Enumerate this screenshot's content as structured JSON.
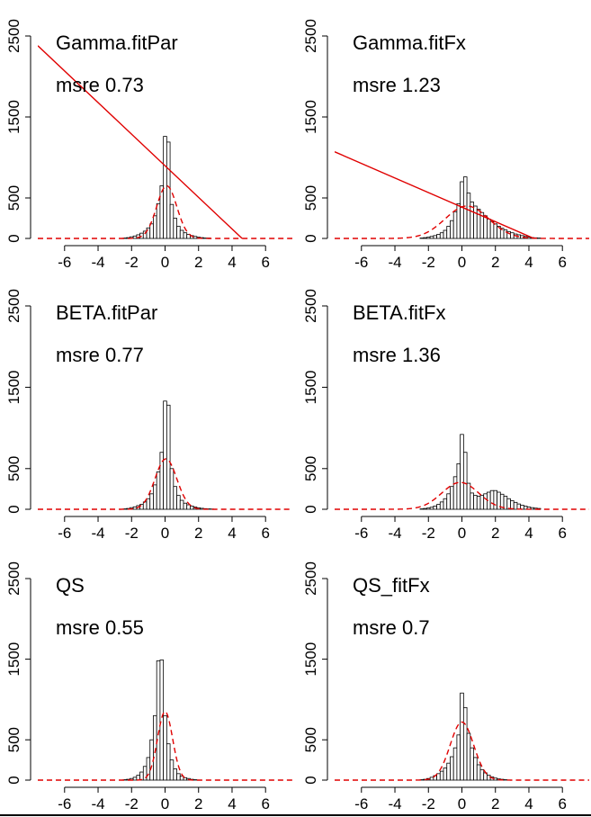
{
  "colors": {
    "line": "#e00000",
    "bars": "#000000",
    "background": "#ffffff"
  },
  "chart_data": [
    {
      "type": "bar",
      "title": "Gamma.fitPar",
      "subtitle": "msre 0.73",
      "xlabel": "",
      "ylabel": "",
      "xlim": [
        -7.6,
        7.6
      ],
      "ylim": [
        0,
        2500
      ],
      "x_ticks": [
        "-6",
        "-4",
        "-2",
        "0",
        "2",
        "4",
        "6"
      ],
      "y_ticks": [
        "0",
        "500",
        "1500",
        "2500"
      ],
      "bins": {
        "start": -2.5,
        "width": 0.2,
        "counts": [
          5,
          10,
          20,
          30,
          45,
          65,
          90,
          130,
          180,
          280,
          430,
          650,
          1260,
          1190,
          420,
          250,
          150,
          100,
          70,
          50,
          35,
          25,
          15,
          10,
          5,
          5
        ]
      },
      "series": [
        {
          "kind": "dashed-density",
          "mean": 0.1,
          "sd": 0.6,
          "peak": 650
        },
        {
          "kind": "solid-line",
          "x": [
            -7.6,
            4.6
          ],
          "y": [
            2380,
            0
          ]
        }
      ]
    },
    {
      "type": "bar",
      "title": "Gamma.fitFx",
      "subtitle": "msre 1.23",
      "xlabel": "",
      "ylabel": "",
      "xlim": [
        -7.6,
        7.6
      ],
      "ylim": [
        0,
        2500
      ],
      "x_ticks": [
        "-6",
        "-4",
        "-2",
        "0",
        "2",
        "4",
        "6"
      ],
      "y_ticks": [
        "0",
        "500",
        "1500",
        "2500"
      ],
      "bins": {
        "start": -2.5,
        "width": 0.2,
        "counts": [
          5,
          10,
          15,
          25,
          35,
          50,
          70,
          100,
          150,
          220,
          330,
          430,
          700,
          760,
          560,
          450,
          400,
          360,
          320,
          280,
          240,
          210,
          180,
          150,
          125,
          105,
          85,
          70,
          55,
          45,
          35,
          25,
          15,
          10,
          8,
          5
        ]
      },
      "series": [
        {
          "kind": "dashed-density",
          "mean": 0.3,
          "sd": 1.3,
          "peak": 400
        },
        {
          "kind": "solid-line",
          "x": [
            -7.6,
            4.3
          ],
          "y": [
            1070,
            0
          ]
        }
      ]
    },
    {
      "type": "bar",
      "title": "BETA.fitPar",
      "subtitle": "msre 0.77",
      "xlabel": "",
      "ylabel": "",
      "xlim": [
        -7.6,
        7.6
      ],
      "ylim": [
        0,
        2500
      ],
      "x_ticks": [
        "-6",
        "-4",
        "-2",
        "0",
        "2",
        "4",
        "6"
      ],
      "y_ticks": [
        "0",
        "500",
        "1500",
        "2500"
      ],
      "bins": {
        "start": -2.5,
        "width": 0.2,
        "counts": [
          5,
          10,
          20,
          30,
          45,
          60,
          90,
          130,
          190,
          300,
          460,
          700,
          1330,
          1280,
          500,
          280,
          170,
          110,
          75,
          55,
          40,
          28,
          18,
          12,
          8,
          5,
          3
        ]
      },
      "series": [
        {
          "kind": "dashed-density",
          "mean": 0.05,
          "sd": 0.65,
          "peak": 620
        }
      ]
    },
    {
      "type": "bar",
      "title": "BETA.fitFx",
      "subtitle": "msre 1.36",
      "xlabel": "",
      "ylabel": "",
      "xlim": [
        -7.6,
        7.6
      ],
      "ylim": [
        0,
        2500
      ],
      "x_ticks": [
        "-6",
        "-4",
        "-2",
        "0",
        "2",
        "4",
        "6"
      ],
      "y_ticks": [
        "0",
        "500",
        "1500",
        "2500"
      ],
      "bins": {
        "start": -2.5,
        "width": 0.2,
        "counts": [
          5,
          10,
          15,
          25,
          40,
          60,
          90,
          130,
          190,
          280,
          400,
          560,
          920,
          700,
          320,
          200,
          170,
          160,
          170,
          190,
          210,
          230,
          230,
          210,
          185,
          160,
          130,
          105,
          85,
          65,
          50,
          38,
          28,
          20,
          14,
          10
        ]
      },
      "series": [
        {
          "kind": "dashed-density",
          "mean": -0.1,
          "sd": 1.1,
          "peak": 330
        }
      ]
    },
    {
      "type": "bar",
      "title": "QS",
      "subtitle": "msre 0.55",
      "xlabel": "",
      "ylabel": "",
      "xlim": [
        -7.6,
        7.6
      ],
      "ylim": [
        0,
        2500
      ],
      "x_ticks": [
        "-6",
        "-4",
        "-2",
        "0",
        "2",
        "4",
        "6"
      ],
      "y_ticks": [
        "0",
        "500",
        "1500",
        "2500"
      ],
      "bins": {
        "start": -2.5,
        "width": 0.2,
        "counts": [
          5,
          10,
          20,
          35,
          60,
          100,
          170,
          280,
          500,
          800,
          1480,
          1490,
          800,
          450,
          250,
          140,
          80,
          50,
          30,
          20,
          10,
          5
        ]
      },
      "series": [
        {
          "kind": "dashed-density",
          "mean": 0.0,
          "sd": 0.45,
          "peak": 850
        }
      ]
    },
    {
      "type": "bar",
      "title": "QS_fitFx",
      "subtitle": "msre 0.7",
      "xlabel": "",
      "ylabel": "",
      "xlim": [
        -7.6,
        7.6
      ],
      "ylim": [
        0,
        2500
      ],
      "x_ticks": [
        "-6",
        "-4",
        "-2",
        "0",
        "2",
        "4",
        "6"
      ],
      "y_ticks": [
        "0",
        "500",
        "1500",
        "2500"
      ],
      "bins": {
        "start": -2.5,
        "width": 0.2,
        "counts": [
          5,
          10,
          20,
          35,
          55,
          80,
          110,
          150,
          210,
          290,
          400,
          560,
          1080,
          900,
          580,
          400,
          280,
          190,
          130,
          90,
          60,
          40,
          25,
          15,
          10,
          5
        ]
      },
      "series": [
        {
          "kind": "dashed-density",
          "mean": 0.0,
          "sd": 0.7,
          "peak": 720
        }
      ]
    }
  ]
}
